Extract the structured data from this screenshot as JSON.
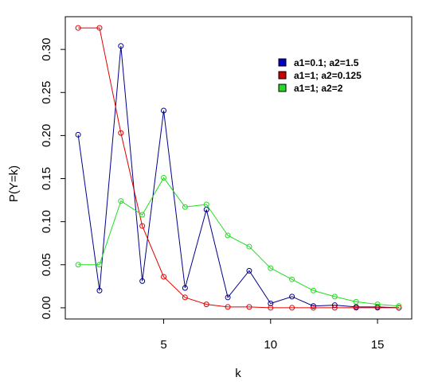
{
  "chart_data": {
    "type": "line",
    "title": "",
    "xlabel": "k",
    "ylabel": "P(Y=k)",
    "x": [
      1,
      2,
      3,
      4,
      5,
      6,
      7,
      8,
      9,
      10,
      11,
      12,
      13,
      14,
      15,
      16
    ],
    "xlim": [
      0.4,
      16.6
    ],
    "ylim": [
      -0.013,
      0.338
    ],
    "x_ticks": [
      5,
      10,
      15
    ],
    "x_tick_labels": [
      "5",
      "10",
      "15"
    ],
    "y_ticks": [
      0.0,
      0.05,
      0.1,
      0.15,
      0.2,
      0.25,
      0.3
    ],
    "y_tick_labels": [
      "0.00",
      "0.05",
      "0.10",
      "0.15",
      "0.20",
      "0.25",
      "0.30"
    ],
    "grid": false,
    "legend_position": "top-right",
    "series": [
      {
        "name": "a1=0.1; a2=1.5",
        "color": "#00008b",
        "legend_color": "#0000cc",
        "values": [
          0.201,
          0.02,
          0.304,
          0.031,
          0.229,
          0.023,
          0.114,
          0.012,
          0.043,
          0.005,
          0.013,
          0.002,
          0.003,
          0.001,
          0.001,
          0.0
        ]
      },
      {
        "name": "a1=1; a2=0.125",
        "color": "#e00000",
        "legend_color": "#cc0000",
        "values": [
          0.325,
          0.325,
          0.203,
          0.095,
          0.036,
          0.012,
          0.004,
          0.001,
          0.001,
          0.0,
          0.0,
          0.0,
          0.0,
          0.0,
          0.0,
          0.0
        ]
      },
      {
        "name": "a1=1; a2=2",
        "color": "#22dd22",
        "legend_color": "#22dd22",
        "values": [
          0.05,
          0.05,
          0.124,
          0.108,
          0.151,
          0.117,
          0.12,
          0.084,
          0.071,
          0.046,
          0.033,
          0.02,
          0.013,
          0.007,
          0.004,
          0.002
        ]
      }
    ]
  }
}
